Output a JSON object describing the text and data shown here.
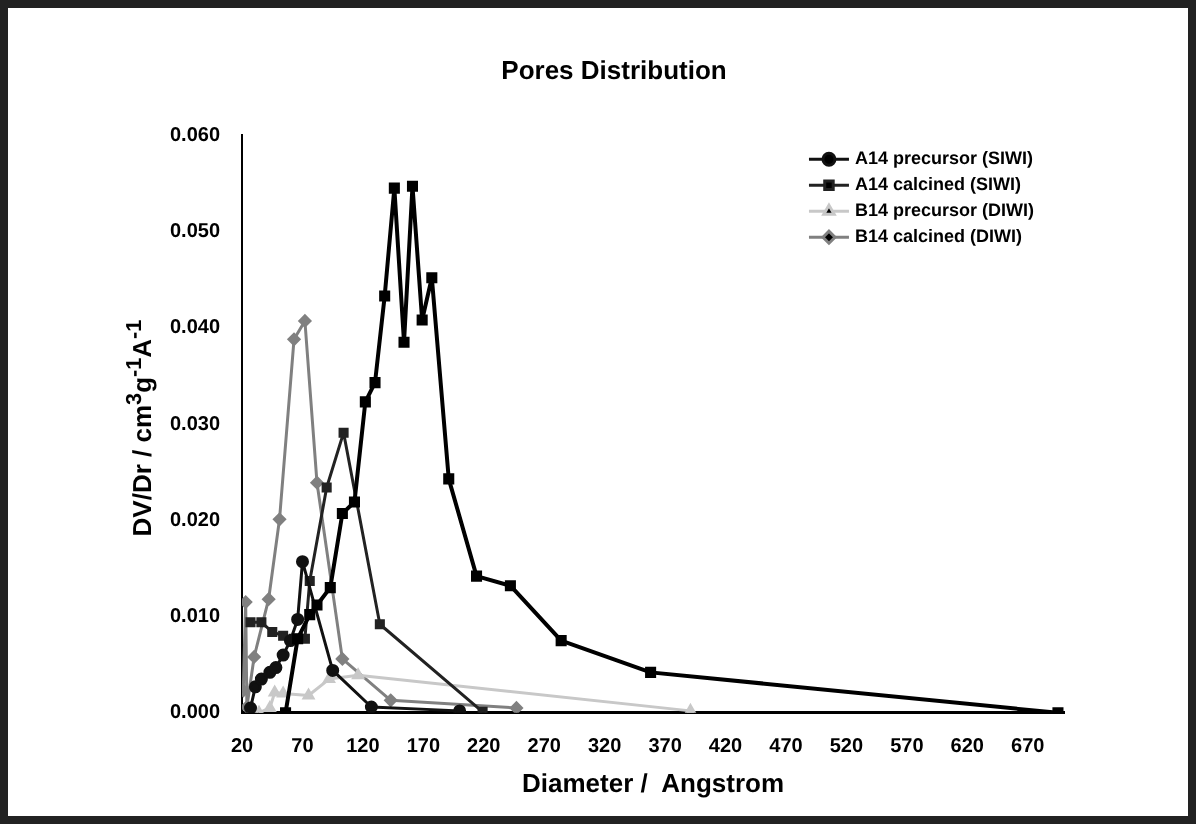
{
  "chart_data": {
    "type": "line",
    "title": "Pores Distribution",
    "xlabel": "Diameter /  Angstrom",
    "ylabel": "DV/Dr  / cm$^{3}$g$^{-1}$A$^{-1}$",
    "xlim": [
      20,
      700
    ],
    "xticks": [
      20,
      70,
      120,
      170,
      220,
      270,
      320,
      370,
      420,
      470,
      520,
      570,
      620,
      670
    ],
    "ylim": [
      0,
      0.06
    ],
    "yticks": [
      {
        "value": 0,
        "label": "0.000"
      },
      {
        "value": 0.01,
        "label": "0.010"
      },
      {
        "value": 0.02,
        "label": "0.020"
      },
      {
        "value": 0.03,
        "label": "0.030"
      },
      {
        "value": 0.04,
        "label": "0.040"
      },
      {
        "value": 0.05,
        "label": "0.050"
      },
      {
        "value": 0.06,
        "label": "0.060"
      }
    ],
    "grid": false,
    "legend": "top right",
    "series": [
      {
        "color": "#000000",
        "marker": "square",
        "x": [
          56,
          66,
          76,
          82,
          93,
          103,
          113,
          122,
          130,
          138,
          146,
          154,
          161,
          169,
          177,
          191,
          214,
          242,
          284,
          358,
          695
        ],
        "values": [
          0,
          0.0077,
          0.0102,
          0.0112,
          0.013,
          0.0207,
          0.0219,
          0.0323,
          0.0343,
          0.0433,
          0.0545,
          0.0385,
          0.0547,
          0.0408,
          0.0452,
          0.0243,
          0.0142,
          0.0132,
          0.0075,
          0.0042,
          0
        ]
      },
      {
        "name": "A14 precursor (SIWI)",
        "color": "#111111",
        "marker": "circle",
        "x": [
          27,
          31,
          36,
          43,
          48,
          54,
          60,
          66,
          70,
          95,
          127,
          200
        ],
        "values": [
          0.0005,
          0.0027,
          0.0035,
          0.0042,
          0.0047,
          0.006,
          0.0075,
          0.0097,
          0.0157,
          0.0044,
          0.0006,
          0.0002
        ]
      },
      {
        "name": "A14 calcined (SIWI)",
        "color": "#222222",
        "marker": "square",
        "x": [
          27,
          36,
          45,
          54,
          63,
          72,
          76,
          90,
          104,
          134,
          219
        ],
        "values": [
          0.0094,
          0.0094,
          0.0084,
          0.008,
          0.0077,
          0.0077,
          0.0137,
          0.0234,
          0.0291,
          0.0092,
          0.0001
        ]
      },
      {
        "name": "B14 precursor (DIWI)",
        "color": "#c8c8c8",
        "marker": "triangle",
        "x": [
          34,
          43,
          47,
          54,
          75,
          92,
          116,
          391
        ],
        "values": [
          0,
          0.0005,
          0.0021,
          0.002,
          0.0018,
          0.0035,
          0.0039,
          0.0002
        ]
      },
      {
        "name": "B14 calcined (DIWI)",
        "color": "#808080",
        "marker": "diamond",
        "x": [
          21,
          23,
          24,
          30,
          42,
          51,
          63,
          72,
          82,
          103,
          143,
          247
        ],
        "values": [
          0.0023,
          0.0115,
          0.0006,
          0.0058,
          0.0118,
          0.0201,
          0.0388,
          0.0407,
          0.0239,
          0.0056,
          0.0013,
          0.0005
        ]
      }
    ]
  }
}
